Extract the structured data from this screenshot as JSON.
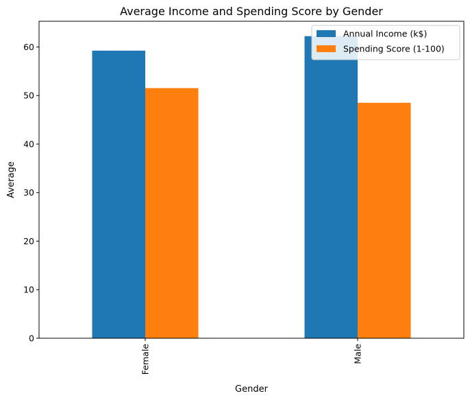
{
  "chart_data": {
    "type": "bar",
    "title": "Average Income and Spending Score by Gender",
    "xlabel": "Gender",
    "ylabel": "Average",
    "categories": [
      "Female",
      "Male"
    ],
    "series": [
      {
        "name": "Annual Income (k$)",
        "values": [
          59.25,
          62.23
        ],
        "color": "#1f77b4"
      },
      {
        "name": "Spending Score (1-100)",
        "values": [
          51.53,
          48.51
        ],
        "color": "#ff7f0e"
      }
    ],
    "ylim": [
      0,
      65.3
    ],
    "yticks": [
      0,
      10,
      20,
      30,
      40,
      50,
      60
    ],
    "grid": false,
    "legend_position": "top-right"
  }
}
